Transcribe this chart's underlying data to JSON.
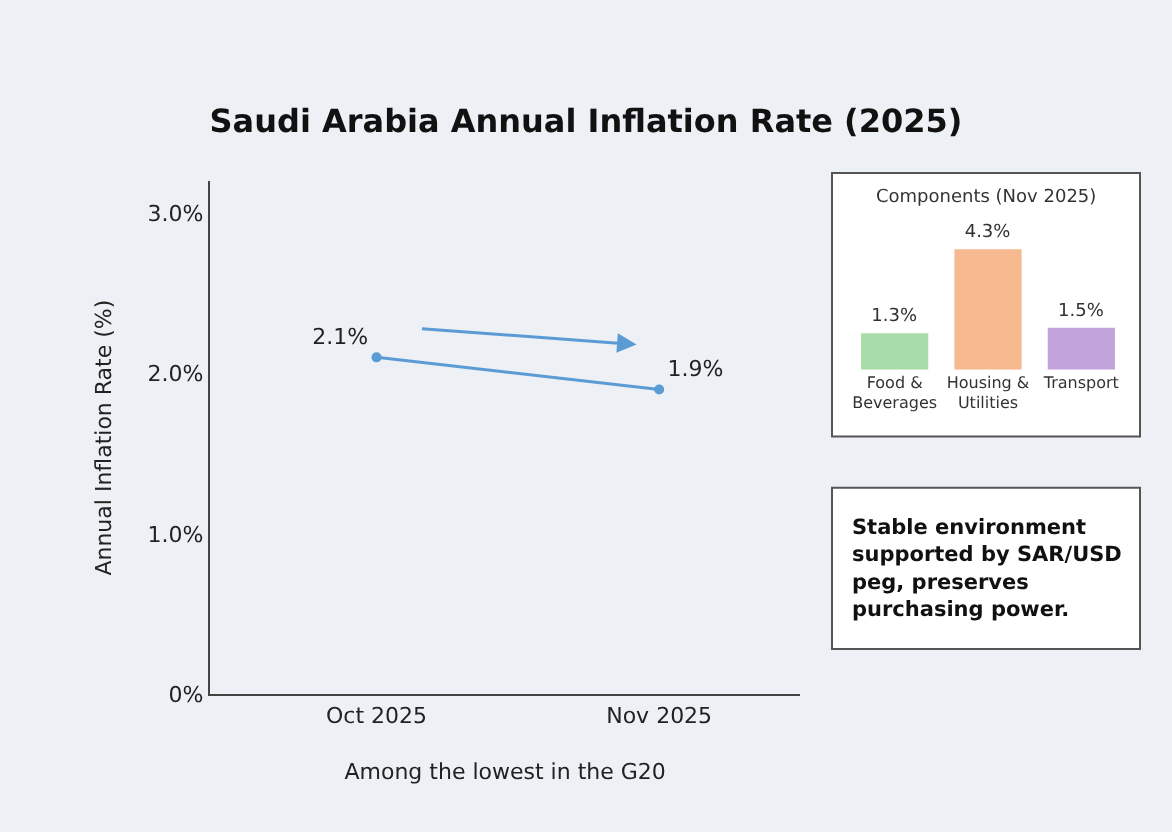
{
  "chart_data": [
    {
      "type": "line",
      "title": "Saudi Arabia Annual Inflation Rate (2025)",
      "xlabel": "Among the lowest in the G20",
      "ylabel": "Annual Inflation Rate (%)",
      "categories": [
        "Oct 2025",
        "Nov 2025"
      ],
      "series": [
        {
          "color": "#5b9bd5",
          "values": [
            2.1,
            1.9
          ],
          "value_labels": [
            "2.1%",
            "1.9%"
          ]
        }
      ],
      "ylim": [
        0,
        3.2
      ],
      "yticks": [
        {
          "value": 0,
          "label": "0%"
        },
        {
          "value": 1,
          "label": "1.0%"
        },
        {
          "value": 2,
          "label": "2.0%"
        },
        {
          "value": 3,
          "label": "3.0%"
        }
      ],
      "marker": "circle",
      "line_style": "solid"
    },
    {
      "type": "bar",
      "title": "Components (Nov 2025)",
      "categories": [
        "Food & Beverages",
        "Housing & Utilities",
        "Transport"
      ],
      "values": [
        1.3,
        4.3,
        1.5
      ],
      "colors": [
        "#a8dca8",
        "#f6b990",
        "#c3a3dc"
      ],
      "value_labels": [
        "1.3%",
        "4.3%",
        "1.5%"
      ]
    },
    {
      "type": "other",
      "annotations": [
        "Stable environment supported by SAR/USD peg, preserves purchasing power."
      ]
    }
  ]
}
